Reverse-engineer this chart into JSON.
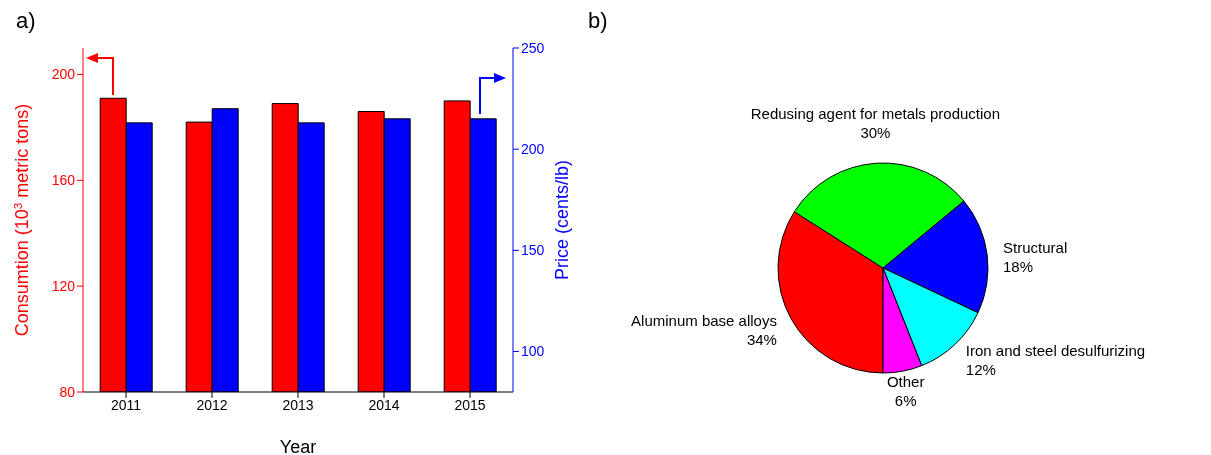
{
  "chart_data": [
    {
      "type": "bar",
      "title": "a)",
      "xlabel": "Year",
      "ylabel": "Consumtion (10$^{3}$ metric tons)",
      "y2label": "Price (cents/lb)",
      "categories": [
        "2011",
        "2012",
        "2013",
        "2014",
        "2015"
      ],
      "series": [
        {
          "color": "#ff0000",
          "values": [
            191,
            182,
            189,
            186,
            190
          ]
        },
        {
          "color": "#0000ff",
          "values": [
            213,
            220,
            213,
            215,
            215
          ],
          "axis": "y2"
        }
      ],
      "ylim": [
        80,
        210
      ],
      "yticks": [
        80,
        120,
        160,
        200
      ],
      "y2lim": [
        80,
        250
      ],
      "y2ticks": [
        100,
        150,
        200,
        250
      ],
      "grid": false,
      "legend": false
    },
    {
      "type": "pie",
      "title": "b)",
      "categories": [
        "Aluminum base alloys",
        "Redusing agent for metals production",
        "Structural",
        "Iron and steel desulfurizing",
        "Other"
      ],
      "values": [
        34,
        30,
        18,
        12,
        6
      ],
      "value_labels": [
        "34%",
        "30%",
        "18%",
        "12%",
        "6%"
      ],
      "colors": [
        "#ff0000",
        "#00ff00",
        "#0000ff",
        "#00ffff",
        "#ff00ff"
      ],
      "legend": false
    }
  ]
}
